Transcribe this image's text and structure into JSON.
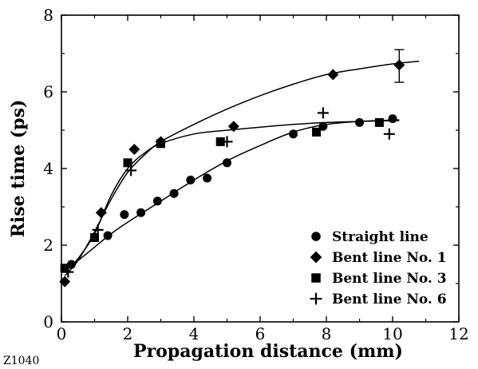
{
  "figure_id": "Z1040",
  "chart_data": {
    "type": "scatter",
    "title": "",
    "xlabel": "Propagation distance (mm)",
    "ylabel": "Rise time (ps)",
    "xlim": [
      0,
      12
    ],
    "ylim": [
      0,
      8
    ],
    "xticks": [
      "0",
      "2",
      "4",
      "6",
      "8",
      "10",
      "12"
    ],
    "yticks": [
      "0",
      "2",
      "4",
      "6",
      "8"
    ],
    "grid": false,
    "legend_position": "bottom-right",
    "series": [
      {
        "name": "Straight line",
        "marker": "circle",
        "points": [
          [
            0.1,
            1.4
          ],
          [
            0.3,
            1.5
          ],
          [
            1.4,
            2.25
          ],
          [
            1.9,
            2.8
          ],
          [
            2.4,
            2.85
          ],
          [
            2.9,
            3.15
          ],
          [
            3.4,
            3.35
          ],
          [
            3.9,
            3.7
          ],
          [
            4.4,
            3.75
          ],
          [
            5.0,
            4.15
          ],
          [
            7.0,
            4.9
          ],
          [
            7.9,
            5.1
          ],
          [
            9.0,
            5.2
          ],
          [
            10.0,
            5.3
          ]
        ],
        "curve": [
          [
            0.1,
            1.35
          ],
          [
            0.5,
            1.6
          ],
          [
            1.0,
            1.95
          ],
          [
            1.5,
            2.3
          ],
          [
            2.0,
            2.6
          ],
          [
            3.0,
            3.15
          ],
          [
            4.0,
            3.7
          ],
          [
            5.0,
            4.2
          ],
          [
            6.0,
            4.6
          ],
          [
            7.0,
            4.95
          ],
          [
            8.0,
            5.15
          ],
          [
            9.0,
            5.23
          ],
          [
            10.2,
            5.27
          ]
        ]
      },
      {
        "name": "Bent line No. 1",
        "marker": "diamond",
        "points": [
          [
            0.1,
            1.05
          ],
          [
            1.2,
            2.85
          ],
          [
            2.2,
            4.5
          ],
          [
            3.0,
            4.7
          ],
          [
            5.2,
            5.1
          ],
          [
            8.2,
            6.45
          ],
          [
            10.2,
            6.7
          ]
        ],
        "error_bars": [
          {
            "x": 10.2,
            "y": 6.7,
            "low": 6.25,
            "high": 7.1
          }
        ],
        "curve": [
          [
            0.1,
            1.2
          ],
          [
            0.5,
            1.6
          ],
          [
            1.0,
            2.35
          ],
          [
            1.5,
            3.2
          ],
          [
            2.0,
            3.9
          ],
          [
            2.5,
            4.35
          ],
          [
            3.0,
            4.7
          ],
          [
            4.0,
            5.15
          ],
          [
            5.0,
            5.55
          ],
          [
            6.0,
            5.9
          ],
          [
            7.0,
            6.2
          ],
          [
            8.0,
            6.45
          ],
          [
            9.0,
            6.6
          ],
          [
            10.0,
            6.73
          ],
          [
            10.8,
            6.8
          ]
        ]
      },
      {
        "name": "Bent line No. 3",
        "marker": "square",
        "points": [
          [
            0.1,
            1.4
          ],
          [
            1.0,
            2.2
          ],
          [
            2.0,
            4.15
          ],
          [
            3.0,
            4.65
          ],
          [
            4.8,
            4.7
          ],
          [
            7.7,
            4.95
          ],
          [
            9.6,
            5.2
          ]
        ],
        "curve": [
          [
            0.1,
            1.3
          ],
          [
            0.5,
            1.65
          ],
          [
            1.0,
            2.3
          ],
          [
            1.5,
            3.3
          ],
          [
            2.0,
            4.0
          ],
          [
            2.5,
            4.4
          ],
          [
            3.0,
            4.65
          ],
          [
            4.0,
            4.9
          ],
          [
            5.0,
            5.0
          ],
          [
            6.0,
            5.08
          ],
          [
            7.0,
            5.15
          ],
          [
            8.0,
            5.2
          ],
          [
            9.0,
            5.23
          ],
          [
            10.2,
            5.25
          ]
        ]
      },
      {
        "name": "Bent line No. 6",
        "marker": "plus",
        "points": [
          [
            0.2,
            1.3
          ],
          [
            1.1,
            2.4
          ],
          [
            2.1,
            3.95
          ],
          [
            5.0,
            4.7
          ],
          [
            7.9,
            5.45
          ],
          [
            9.9,
            4.9
          ]
        ]
      }
    ]
  }
}
